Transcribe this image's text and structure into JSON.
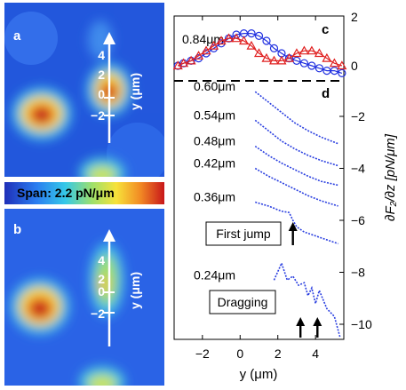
{
  "panel_a": {
    "letter": "a",
    "axis_label": "y (μm)",
    "ticks": [
      "4",
      "2",
      "0",
      "−2"
    ]
  },
  "panel_b": {
    "letter": "b",
    "axis_label": "y (μm)",
    "ticks": [
      "4",
      "2",
      "0",
      "−2"
    ]
  },
  "colorbar": {
    "label": "Span: 2.2 pN/μm"
  },
  "chart_data": [
    {
      "panel": "c",
      "type": "line",
      "annotation": "0.84μm",
      "x_range": [
        -3.5,
        5.5
      ],
      "y_range": [
        -0.5,
        2
      ],
      "right_ticks": [
        "2",
        "0"
      ],
      "series": [
        {
          "marker": "circle",
          "color": "#2030e0",
          "x": [
            -3.3,
            -3.0,
            -2.6,
            -2.2,
            -1.8,
            -1.4,
            -1.0,
            -0.6,
            -0.2,
            0.2,
            0.6,
            1.0,
            1.4,
            1.8,
            2.2,
            2.6,
            3.0,
            3.4,
            3.8,
            4.2,
            4.6,
            5.0,
            5.4
          ],
          "y": [
            0.0,
            0.1,
            0.2,
            0.3,
            0.5,
            0.7,
            0.9,
            1.1,
            1.25,
            1.3,
            1.3,
            1.2,
            1.0,
            0.7,
            0.5,
            0.3,
            0.2,
            0.1,
            0.0,
            -0.1,
            -0.2,
            -0.2,
            -0.3
          ]
        },
        {
          "marker": "triangle",
          "color": "#e02020",
          "x": [
            -3.3,
            -3.0,
            -2.6,
            -2.2,
            -1.8,
            -1.4,
            -1.0,
            -0.6,
            -0.2,
            0.2,
            0.6,
            1.0,
            1.4,
            1.8,
            2.2,
            2.6,
            3.0,
            3.4,
            3.8,
            4.2,
            4.6,
            5.0,
            5.4
          ],
          "y": [
            0.0,
            0.1,
            0.2,
            0.4,
            0.6,
            0.8,
            1.0,
            1.1,
            1.1,
            1.0,
            0.8,
            0.5,
            0.3,
            0.2,
            0.2,
            0.3,
            0.5,
            0.6,
            0.6,
            0.5,
            0.3,
            0.1,
            0.0
          ]
        }
      ]
    },
    {
      "panel": "d",
      "type": "line",
      "xlabel": "y (μm)",
      "ylabel": "∂F₂/∂z [pN/μm]",
      "x_range": [
        -3.5,
        5.5
      ],
      "y_range": [
        -10.7,
        -0.5
      ],
      "x_ticks": [
        "−2",
        "0",
        "2",
        "4"
      ],
      "right_ticks": [
        "−2",
        "−4",
        "−6",
        "−8",
        "−10"
      ],
      "curves": [
        {
          "label": "0.60μm",
          "x": [
            0.8,
            1.5,
            2.2,
            2.9,
            3.6,
            4.3,
            5.2
          ],
          "y": [
            -1.05,
            -1.45,
            -1.85,
            -2.25,
            -2.55,
            -2.8,
            -3.05
          ]
        },
        {
          "label": "0.54μm",
          "x": [
            0.8,
            1.5,
            2.2,
            2.9,
            3.6,
            4.3,
            5.2
          ],
          "y": [
            -2.15,
            -2.55,
            -2.95,
            -3.25,
            -3.5,
            -3.7,
            -3.9
          ]
        },
        {
          "label": "0.48μm",
          "x": [
            0.8,
            1.5,
            2.2,
            2.9,
            3.6,
            4.3,
            5.2
          ],
          "y": [
            -3.15,
            -3.5,
            -3.8,
            -4.05,
            -4.3,
            -4.5,
            -4.65
          ]
        },
        {
          "label": "0.42μm",
          "x": [
            0.8,
            1.5,
            2.2,
            2.9,
            3.6,
            4.3,
            5.2
          ],
          "y": [
            -4.0,
            -4.3,
            -4.55,
            -4.8,
            -5.05,
            -5.25,
            -5.45
          ]
        },
        {
          "label": "0.36μm",
          "x": [
            0.8,
            1.5,
            2.2,
            2.6,
            2.8,
            3.0,
            3.4,
            4.0,
            4.6,
            5.2
          ],
          "y": [
            -5.3,
            -5.45,
            -5.65,
            -5.7,
            -6.0,
            -6.25,
            -6.45,
            -6.6,
            -6.75,
            -6.9
          ]
        },
        {
          "label": "0.24μm",
          "x": [
            1.8,
            2.2,
            2.5,
            2.8,
            3.1,
            3.4,
            3.6,
            3.8,
            4.0,
            4.2,
            4.6,
            5.0,
            5.3
          ],
          "y": [
            -8.3,
            -7.65,
            -8.3,
            -8.15,
            -8.5,
            -8.4,
            -8.9,
            -8.6,
            -9.2,
            -8.7,
            -9.4,
            -9.7,
            -10.5
          ]
        }
      ],
      "annotations": [
        {
          "text": "First jump",
          "arrow_x": [
            2.8
          ]
        },
        {
          "text": "Dragging",
          "arrow_x": [
            3.2,
            4.1
          ]
        }
      ]
    }
  ]
}
